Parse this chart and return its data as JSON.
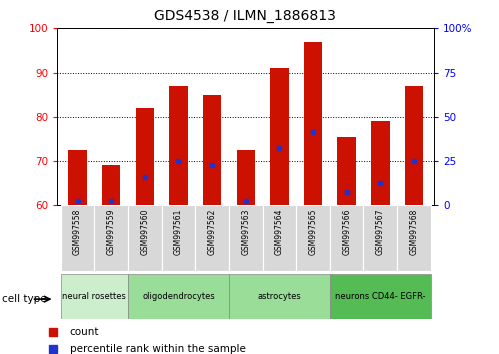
{
  "title": "GDS4538 / ILMN_1886813",
  "samples": [
    "GSM997558",
    "GSM997559",
    "GSM997560",
    "GSM997561",
    "GSM997562",
    "GSM997563",
    "GSM997564",
    "GSM997565",
    "GSM997566",
    "GSM997567",
    "GSM997568"
  ],
  "count_values": [
    72.5,
    69.0,
    82.0,
    87.0,
    85.0,
    72.5,
    91.0,
    97.0,
    75.5,
    79.0,
    87.0
  ],
  "percentile_y": [
    61.0,
    61.0,
    66.5,
    70.0,
    69.0,
    61.0,
    73.0,
    76.5,
    63.0,
    65.0,
    70.0
  ],
  "ylim_left": [
    60,
    100
  ],
  "yticks_left": [
    60,
    70,
    80,
    90,
    100
  ],
  "yticks_right_labels": [
    "0",
    "25",
    "50",
    "75",
    "100%"
  ],
  "yticks_right_pos": [
    60,
    70,
    80,
    90,
    100
  ],
  "bar_color": "#cc1100",
  "percentile_color": "#2233cc",
  "cell_type_boundaries": [
    0,
    2,
    5,
    8,
    11
  ],
  "cell_type_labels": [
    "neural rosettes",
    "oligodendrocytes",
    "astrocytes",
    "neurons CD44- EGFR-"
  ],
  "cell_type_colors": [
    "#cceecc",
    "#99dd99",
    "#99dd99",
    "#55bb55"
  ],
  "legend_count_label": "count",
  "legend_percentile_label": "percentile rank within the sample"
}
